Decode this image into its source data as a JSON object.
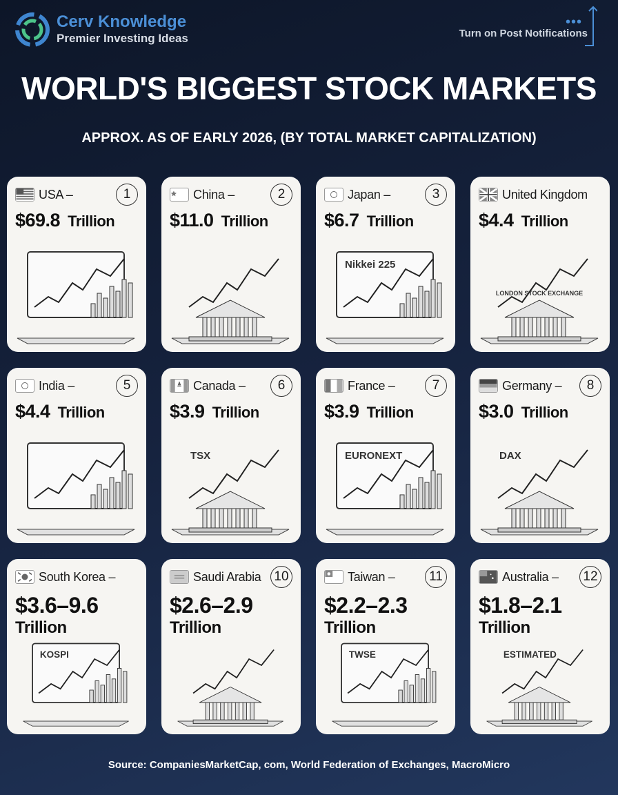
{
  "header": {
    "brand": "Cerv Knowledge",
    "tagline": "Premier Investing Ideas",
    "notification_text": "Turn on Post Notifications",
    "accent_color": "#4b8fd6"
  },
  "title": "WORLD'S BIGGEST STOCK MARKETS",
  "subtitle": "APPROX. AS OF EARLY 2026, (BY TOTAL MARKET CAPITALIZATION)",
  "markets": [
    {
      "country": "USA –",
      "rank": "1",
      "value": "$69.8",
      "unit": "Trillion",
      "illustration_label": ""
    },
    {
      "country": "China –",
      "rank": "2",
      "value": "$11.0",
      "unit": "Trillion",
      "illustration_label": ""
    },
    {
      "country": "Japan –",
      "rank": "3",
      "value": "$6.7",
      "unit": "Trillion",
      "illustration_label": "Nikkei 225"
    },
    {
      "country": "United Kingdom",
      "rank": "",
      "value": "$4.4",
      "unit": "Trillion",
      "illustration_label": "LONDON STOCK EXCHANGE"
    },
    {
      "country": "India –",
      "rank": "5",
      "value": "$4.4",
      "unit": "Trillion",
      "illustration_label": ""
    },
    {
      "country": "Canada –",
      "rank": "6",
      "value": "$3.9",
      "unit": "Trillion",
      "illustration_label": "TSX"
    },
    {
      "country": "France –",
      "rank": "7",
      "value": "$3.9",
      "unit": "Trillion",
      "illustration_label": "EURONEXT"
    },
    {
      "country": "Germany –",
      "rank": "8",
      "value": "$3.0",
      "unit": "Trillion",
      "illustration_label": "DAX"
    },
    {
      "country": "South Korea –",
      "rank": "",
      "value": "$3.6–9.6",
      "unit": "Trillion",
      "illustration_label": "KOSPI"
    },
    {
      "country": "Saudi Arabia",
      "rank": "10",
      "value": "$2.6–2.9",
      "unit": "Trillion",
      "illustration_label": ""
    },
    {
      "country": "Taiwan –",
      "rank": "11",
      "value": "$2.2–2.3",
      "unit": "Trillion",
      "illustration_label": "TWSE"
    },
    {
      "country": "Australia –",
      "rank": "12",
      "value": "$1.8–2.1",
      "unit": "Trillion",
      "illustration_label": "ESTIMATED"
    }
  ],
  "source": "Source: CompaniesMarketCap, com, World Federation of Exchanges, MacroMicro"
}
